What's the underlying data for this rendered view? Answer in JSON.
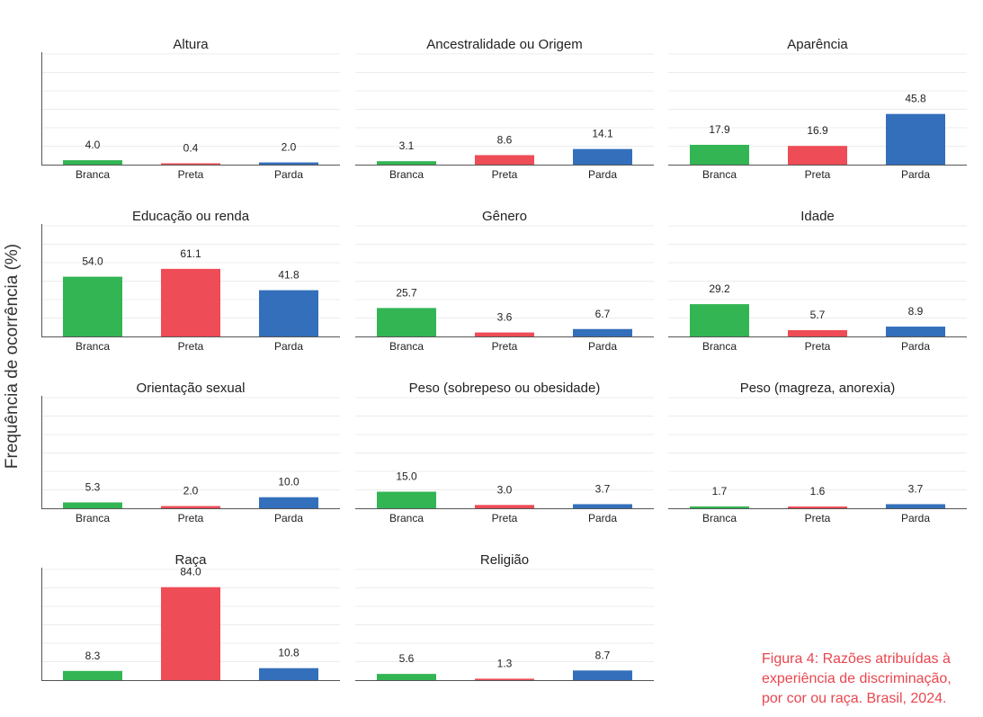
{
  "ylabel": "Frequência de ocorrência (%)",
  "caption": "Figura 4: Razões atribuídas à experiência de discriminação, por cor ou raça. Brasil, 2024.",
  "colors": {
    "Branca": "#33b554",
    "Preta": "#ee4c56",
    "Parda": "#336fbb"
  },
  "chart_data": [
    {
      "type": "bar",
      "title": "Altura",
      "categories": [
        "Branca",
        "Preta",
        "Parda"
      ],
      "values": [
        4.0,
        0.4,
        2.0
      ],
      "ylim": [
        0,
        100
      ]
    },
    {
      "type": "bar",
      "title": "Ancestralidade ou Origem",
      "categories": [
        "Branca",
        "Preta",
        "Parda"
      ],
      "values": [
        3.1,
        8.6,
        14.1
      ],
      "ylim": [
        0,
        100
      ]
    },
    {
      "type": "bar",
      "title": "Aparência",
      "categories": [
        "Branca",
        "Preta",
        "Parda"
      ],
      "values": [
        17.9,
        16.9,
        45.8
      ],
      "ylim": [
        0,
        100
      ]
    },
    {
      "type": "bar",
      "title": "Educação ou renda",
      "categories": [
        "Branca",
        "Preta",
        "Parda"
      ],
      "values": [
        54.0,
        61.1,
        41.8
      ],
      "ylim": [
        0,
        100
      ]
    },
    {
      "type": "bar",
      "title": "Gênero",
      "categories": [
        "Branca",
        "Preta",
        "Parda"
      ],
      "values": [
        25.7,
        3.6,
        6.7
      ],
      "ylim": [
        0,
        100
      ]
    },
    {
      "type": "bar",
      "title": "Idade",
      "categories": [
        "Branca",
        "Preta",
        "Parda"
      ],
      "values": [
        29.2,
        5.7,
        8.9
      ],
      "ylim": [
        0,
        100
      ]
    },
    {
      "type": "bar",
      "title": "Orientação sexual",
      "categories": [
        "Branca",
        "Preta",
        "Parda"
      ],
      "values": [
        5.3,
        2.0,
        10.0
      ],
      "ylim": [
        0,
        100
      ]
    },
    {
      "type": "bar",
      "title": "Peso (sobrepeso ou obesidade)",
      "categories": [
        "Branca",
        "Preta",
        "Parda"
      ],
      "values": [
        15.0,
        3.0,
        3.7
      ],
      "ylim": [
        0,
        100
      ]
    },
    {
      "type": "bar",
      "title": "Peso (magreza, anorexia)",
      "categories": [
        "Branca",
        "Preta",
        "Parda"
      ],
      "values": [
        1.7,
        1.6,
        3.7
      ],
      "ylim": [
        0,
        100
      ]
    },
    {
      "type": "bar",
      "title": "Raça",
      "categories": [
        "Branca",
        "Preta",
        "Parda"
      ],
      "values": [
        8.3,
        84.0,
        10.8
      ],
      "ylim": [
        0,
        100
      ]
    },
    {
      "type": "bar",
      "title": "Religião",
      "categories": [
        "Branca",
        "Preta",
        "Parda"
      ],
      "values": [
        5.6,
        1.3,
        8.7
      ],
      "ylim": [
        0,
        100
      ]
    }
  ]
}
